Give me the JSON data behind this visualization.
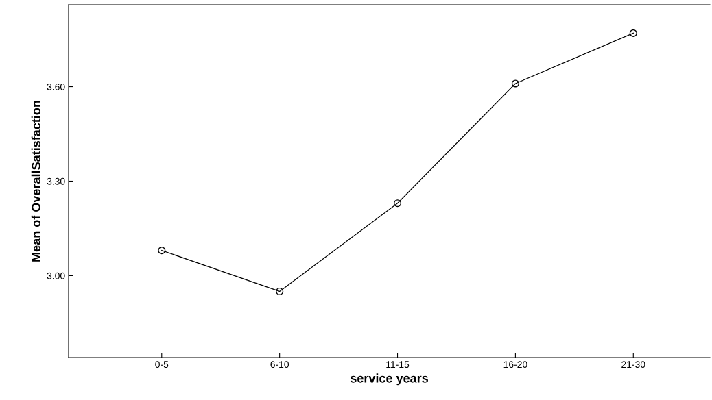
{
  "chart_data": {
    "type": "line",
    "xlabel": "service years",
    "ylabel": "Mean of OverallSatisfaction",
    "categories": [
      "0-5",
      "6-10",
      "11-15",
      "16-20",
      "21-30"
    ],
    "series": [
      {
        "color": "#000000",
        "values": [
          3.08,
          2.95,
          3.23,
          3.61,
          3.77
        ]
      }
    ],
    "ylim": [
      2.74,
      3.86
    ],
    "yticks": [
      {
        "value": 3.0,
        "label": "3.00"
      },
      {
        "value": 3.3,
        "label": "3.30"
      },
      {
        "value": 3.6,
        "label": "3.60"
      }
    ],
    "marker": "circle",
    "line_style": "solid",
    "grid": false,
    "legend": false
  }
}
